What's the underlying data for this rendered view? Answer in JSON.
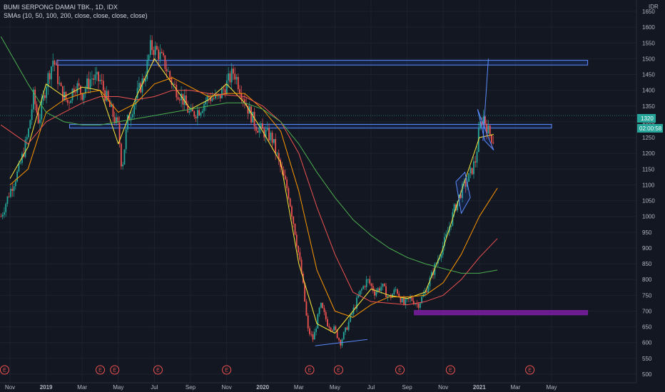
{
  "header": {
    "title": "BUMI SERPONG DAMAI TBK., 1D, IDX",
    "indicators": "SMAs (10, 50, 100, 200, close, close, close, close)"
  },
  "price_axis": {
    "currency": "IDR",
    "current_price": "1320",
    "countdown": "02:00:58"
  },
  "chart_data": {
    "type": "candlestick",
    "symbol": "BUMI SERPONG DAMAI TBK.",
    "timeframe": "1D",
    "exchange": "IDX",
    "ylim": [
      490,
      1700
    ],
    "y_ticks": [
      500,
      550,
      600,
      650,
      700,
      750,
      800,
      850,
      900,
      950,
      1000,
      1050,
      1100,
      1150,
      1200,
      1250,
      1300,
      1350,
      1400,
      1450,
      1500,
      1550,
      1600,
      1650,
      1700
    ],
    "x_ticks": [
      {
        "label": "Nov",
        "t": 0.0,
        "bold": false
      },
      {
        "label": "2019",
        "t": 2.0,
        "bold": true
      },
      {
        "label": "Mar",
        "t": 4.0,
        "bold": false
      },
      {
        "label": "May",
        "t": 6.0,
        "bold": false
      },
      {
        "label": "Jul",
        "t": 8.0,
        "bold": false
      },
      {
        "label": "Sep",
        "t": 10.0,
        "bold": false
      },
      {
        "label": "Nov",
        "t": 12.0,
        "bold": false
      },
      {
        "label": "2020",
        "t": 14.0,
        "bold": true
      },
      {
        "label": "Mar",
        "t": 16.0,
        "bold": false
      },
      {
        "label": "May",
        "t": 18.0,
        "bold": false
      },
      {
        "label": "Jul",
        "t": 20.0,
        "bold": false
      },
      {
        "label": "Sep",
        "t": 22.0,
        "bold": false
      },
      {
        "label": "Nov",
        "t": 24.0,
        "bold": false
      },
      {
        "label": "2021",
        "t": 26.0,
        "bold": true
      },
      {
        "label": "Mar",
        "t": 28.0,
        "bold": false
      },
      {
        "label": "May",
        "t": 30.0,
        "bold": false
      }
    ],
    "price_path": [
      [
        -0.5,
        1000
      ],
      [
        0.0,
        1080
      ],
      [
        0.5,
        1150
      ],
      [
        1.0,
        1260
      ],
      [
        1.3,
        1380
      ],
      [
        1.6,
        1300
      ],
      [
        2.0,
        1420
      ],
      [
        2.4,
        1500
      ],
      [
        2.8,
        1400
      ],
      [
        3.2,
        1360
      ],
      [
        3.6,
        1420
      ],
      [
        4.0,
        1390
      ],
      [
        4.5,
        1440
      ],
      [
        5.0,
        1430
      ],
      [
        5.5,
        1350
      ],
      [
        6.0,
        1280
      ],
      [
        6.2,
        1150
      ],
      [
        6.5,
        1300
      ],
      [
        7.0,
        1380
      ],
      [
        7.5,
        1450
      ],
      [
        7.8,
        1540
      ],
      [
        8.2,
        1520
      ],
      [
        8.6,
        1480
      ],
      [
        9.0,
        1420
      ],
      [
        9.5,
        1380
      ],
      [
        10.0,
        1320
      ],
      [
        10.5,
        1340
      ],
      [
        11.0,
        1380
      ],
      [
        11.5,
        1370
      ],
      [
        12.0,
        1420
      ],
      [
        12.4,
        1460
      ],
      [
        12.8,
        1400
      ],
      [
        13.2,
        1340
      ],
      [
        13.6,
        1290
      ],
      [
        14.0,
        1270
      ],
      [
        14.5,
        1250
      ],
      [
        15.0,
        1150
      ],
      [
        15.4,
        1080
      ],
      [
        15.8,
        950
      ],
      [
        16.2,
        800
      ],
      [
        16.5,
        640
      ],
      [
        16.8,
        610
      ],
      [
        17.2,
        720
      ],
      [
        17.6,
        660
      ],
      [
        18.0,
        640
      ],
      [
        18.3,
        600
      ],
      [
        18.6,
        640
      ],
      [
        19.0,
        700
      ],
      [
        19.4,
        760
      ],
      [
        19.8,
        800
      ],
      [
        20.2,
        760
      ],
      [
        20.6,
        780
      ],
      [
        21.0,
        740
      ],
      [
        21.4,
        770
      ],
      [
        21.8,
        720
      ],
      [
        22.2,
        740
      ],
      [
        22.6,
        720
      ],
      [
        23.0,
        760
      ],
      [
        23.4,
        820
      ],
      [
        23.8,
        880
      ],
      [
        24.2,
        940
      ],
      [
        24.6,
        1020
      ],
      [
        25.0,
        1080
      ],
      [
        25.4,
        1120
      ],
      [
        25.8,
        1180
      ],
      [
        26.0,
        1280
      ],
      [
        26.2,
        1320
      ],
      [
        26.5,
        1270
      ],
      [
        26.8,
        1240
      ]
    ],
    "series": [
      {
        "name": "SMA 10",
        "color": "#ffeb3b",
        "points": [
          [
            0,
            1120
          ],
          [
            1,
            1220
          ],
          [
            2,
            1420
          ],
          [
            3,
            1380
          ],
          [
            4,
            1410
          ],
          [
            5,
            1400
          ],
          [
            6,
            1230
          ],
          [
            7,
            1380
          ],
          [
            8,
            1500
          ],
          [
            9,
            1420
          ],
          [
            10,
            1340
          ],
          [
            11,
            1370
          ],
          [
            12,
            1420
          ],
          [
            13,
            1360
          ],
          [
            14,
            1270
          ],
          [
            15,
            1170
          ],
          [
            16,
            850
          ],
          [
            17,
            660
          ],
          [
            18,
            630
          ],
          [
            19,
            700
          ],
          [
            20,
            770
          ],
          [
            21,
            750
          ],
          [
            22,
            740
          ],
          [
            23,
            760
          ],
          [
            24,
            900
          ],
          [
            25,
            1080
          ],
          [
            26,
            1250
          ],
          [
            26.8,
            1260
          ]
        ]
      },
      {
        "name": "SMA 50",
        "color": "#ff9800",
        "points": [
          [
            0,
            1100
          ],
          [
            1,
            1150
          ],
          [
            2,
            1330
          ],
          [
            3,
            1370
          ],
          [
            4,
            1390
          ],
          [
            5,
            1400
          ],
          [
            6,
            1330
          ],
          [
            7,
            1360
          ],
          [
            8,
            1420
          ],
          [
            9,
            1440
          ],
          [
            10,
            1410
          ],
          [
            11,
            1380
          ],
          [
            12,
            1390
          ],
          [
            13,
            1390
          ],
          [
            14,
            1340
          ],
          [
            15,
            1270
          ],
          [
            16,
            1080
          ],
          [
            17,
            830
          ],
          [
            18,
            700
          ],
          [
            19,
            680
          ],
          [
            20,
            720
          ],
          [
            21,
            745
          ],
          [
            22,
            745
          ],
          [
            23,
            750
          ],
          [
            24,
            790
          ],
          [
            25,
            880
          ],
          [
            26,
            1000
          ],
          [
            27,
            1090
          ]
        ]
      },
      {
        "name": "SMA 100",
        "color": "#ef5350",
        "points": [
          [
            -0.5,
            1290
          ],
          [
            1,
            1230
          ],
          [
            2,
            1300
          ],
          [
            3,
            1330
          ],
          [
            4,
            1360
          ],
          [
            5,
            1380
          ],
          [
            6,
            1380
          ],
          [
            7,
            1370
          ],
          [
            8,
            1380
          ],
          [
            9,
            1400
          ],
          [
            10,
            1400
          ],
          [
            11,
            1390
          ],
          [
            12,
            1385
          ],
          [
            13,
            1380
          ],
          [
            14,
            1350
          ],
          [
            15,
            1300
          ],
          [
            16,
            1200
          ],
          [
            17,
            1030
          ],
          [
            18,
            880
          ],
          [
            19,
            760
          ],
          [
            20,
            730
          ],
          [
            21,
            725
          ],
          [
            22,
            720
          ],
          [
            23,
            730
          ],
          [
            24,
            750
          ],
          [
            25,
            800
          ],
          [
            26,
            870
          ],
          [
            27,
            930
          ]
        ]
      },
      {
        "name": "SMA 200",
        "color": "#4caf50",
        "points": [
          [
            -0.5,
            1570
          ],
          [
            1,
            1420
          ],
          [
            2,
            1330
          ],
          [
            3,
            1300
          ],
          [
            4,
            1290
          ],
          [
            5,
            1290
          ],
          [
            6,
            1300
          ],
          [
            7,
            1310
          ],
          [
            8,
            1320
          ],
          [
            9,
            1330
          ],
          [
            10,
            1340
          ],
          [
            11,
            1350
          ],
          [
            12,
            1360
          ],
          [
            13,
            1360
          ],
          [
            14,
            1340
          ],
          [
            15,
            1300
          ],
          [
            16,
            1230
          ],
          [
            17,
            1140
          ],
          [
            18,
            1060
          ],
          [
            19,
            990
          ],
          [
            20,
            940
          ],
          [
            21,
            900
          ],
          [
            22,
            870
          ],
          [
            23,
            850
          ],
          [
            24,
            835
          ],
          [
            25,
            820
          ],
          [
            26,
            820
          ],
          [
            27,
            830
          ]
        ]
      }
    ],
    "zones": [
      {
        "name": "resistance-zone-top",
        "y1": 1480,
        "y2": 1495,
        "x1": 2.6,
        "x2": 32.0,
        "color": "#2962ff"
      },
      {
        "name": "resistance-zone-mid",
        "y1": 1280,
        "y2": 1292,
        "x1": 3.3,
        "x2": 30.0,
        "color": "#2962ff"
      },
      {
        "name": "support-zone-purple",
        "y1": 688,
        "y2": 702,
        "x1": 22.4,
        "x2": 32.0,
        "color": "#9c27b0"
      }
    ],
    "lines": [
      {
        "name": "bottom-trendline",
        "points": [
          [
            16.9,
            590
          ],
          [
            19.8,
            610
          ]
        ],
        "color": "#2962ff"
      },
      {
        "name": "breakout-line",
        "points": [
          [
            26.2,
            1240
          ],
          [
            26.5,
            1500
          ]
        ],
        "color": "#2962ff"
      }
    ],
    "patterns": [
      {
        "name": "flag-pattern-low",
        "points": [
          [
            24.7,
            1110
          ],
          [
            25.2,
            1140
          ],
          [
            25.5,
            1060
          ],
          [
            25.0,
            1010
          ],
          [
            24.7,
            1110
          ]
        ],
        "color": "#2962ff"
      },
      {
        "name": "flag-pattern-high",
        "points": [
          [
            25.9,
            1340
          ],
          [
            26.5,
            1250
          ],
          [
            26.8,
            1210
          ],
          [
            26.3,
            1240
          ],
          [
            25.9,
            1340
          ]
        ],
        "color": "#2962ff"
      }
    ],
    "event_markers": [
      {
        "t": -0.3,
        "label": "E"
      },
      {
        "t": 5.0,
        "label": "E"
      },
      {
        "t": 5.8,
        "label": "E"
      },
      {
        "t": 8.2,
        "label": "E"
      },
      {
        "t": 12.0,
        "label": "E"
      },
      {
        "t": 16.6,
        "label": "E"
      },
      {
        "t": 18.2,
        "label": "E"
      },
      {
        "t": 21.6,
        "label": "E"
      },
      {
        "t": 24.4,
        "label": "E"
      },
      {
        "t": 28.8,
        "label": "E"
      }
    ]
  }
}
